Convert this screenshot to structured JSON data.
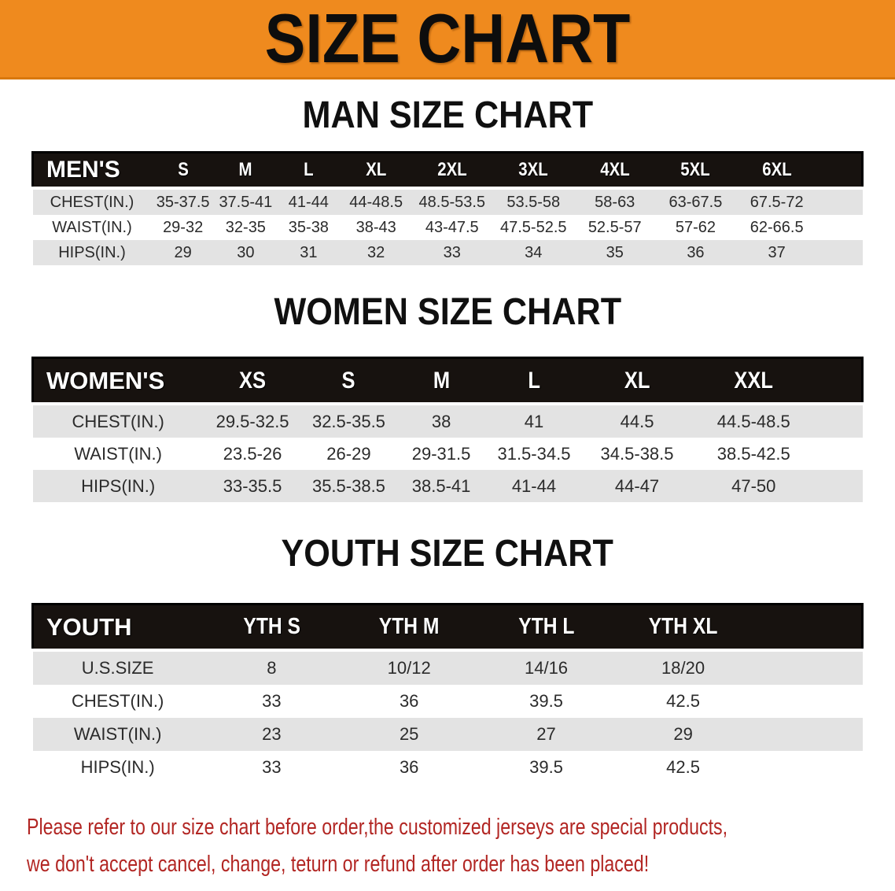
{
  "banner": {
    "title": "SIZE CHART"
  },
  "colors": {
    "banner_bg": "#EF8A1E",
    "header_bar_bg": "#17120F",
    "row_alt_bg": "#E3E3E3",
    "footer_text": "#B22623"
  },
  "sections": [
    {
      "heading": "MAN SIZE CHART",
      "table": {
        "group_label": "MEN'S",
        "sizes": [
          "S",
          "M",
          "L",
          "XL",
          "2XL",
          "3XL",
          "4XL",
          "5XL",
          "6XL"
        ],
        "rows": [
          {
            "label": "CHEST(IN.)",
            "values": [
              "35-37.5",
              "37.5-41",
              "41-44",
              "44-48.5",
              "48.5-53.5",
              "53.5-58",
              "58-63",
              "63-67.5",
              "67.5-72"
            ]
          },
          {
            "label": "WAIST(IN.)",
            "values": [
              "29-32",
              "32-35",
              "35-38",
              "38-43",
              "43-47.5",
              "47.5-52.5",
              "52.5-57",
              "57-62",
              "62-66.5"
            ]
          },
          {
            "label": "HIPS(IN.)",
            "values": [
              "29",
              "30",
              "31",
              "32",
              "33",
              "34",
              "35",
              "36",
              "37"
            ]
          }
        ]
      }
    },
    {
      "heading": "WOMEN SIZE CHART",
      "table": {
        "group_label": "WOMEN'S",
        "sizes": [
          "XS",
          "S",
          "M",
          "L",
          "XL",
          "XXL"
        ],
        "rows": [
          {
            "label": "CHEST(IN.)",
            "values": [
              "29.5-32.5",
              "32.5-35.5",
              "38",
              "41",
              "44.5",
              "44.5-48.5"
            ]
          },
          {
            "label": "WAIST(IN.)",
            "values": [
              "23.5-26",
              "26-29",
              "29-31.5",
              "31.5-34.5",
              "34.5-38.5",
              "38.5-42.5"
            ]
          },
          {
            "label": "HIPS(IN.)",
            "values": [
              "33-35.5",
              "35.5-38.5",
              "38.5-41",
              "41-44",
              "44-47",
              "47-50"
            ]
          }
        ]
      }
    },
    {
      "heading": "YOUTH SIZE CHART",
      "table": {
        "group_label": "YOUTH",
        "sizes": [
          "YTH S",
          "YTH M",
          "YTH L",
          "YTH XL"
        ],
        "rows": [
          {
            "label": "U.S.SIZE",
            "values": [
              "8",
              "10/12",
              "14/16",
              "18/20"
            ]
          },
          {
            "label": "CHEST(IN.)",
            "values": [
              "33",
              "36",
              "39.5",
              "42.5"
            ]
          },
          {
            "label": "WAIST(IN.)",
            "values": [
              "23",
              "25",
              "27",
              "29"
            ]
          },
          {
            "label": "HIPS(IN.)",
            "values": [
              "33",
              "36",
              "39.5",
              "42.5"
            ]
          }
        ]
      }
    }
  ],
  "footer": {
    "line1": "Please refer to our size chart before order,the customized jerseys are special products,",
    "line2": "we don't accept cancel, change, teturn or refund after order has been placed!"
  }
}
